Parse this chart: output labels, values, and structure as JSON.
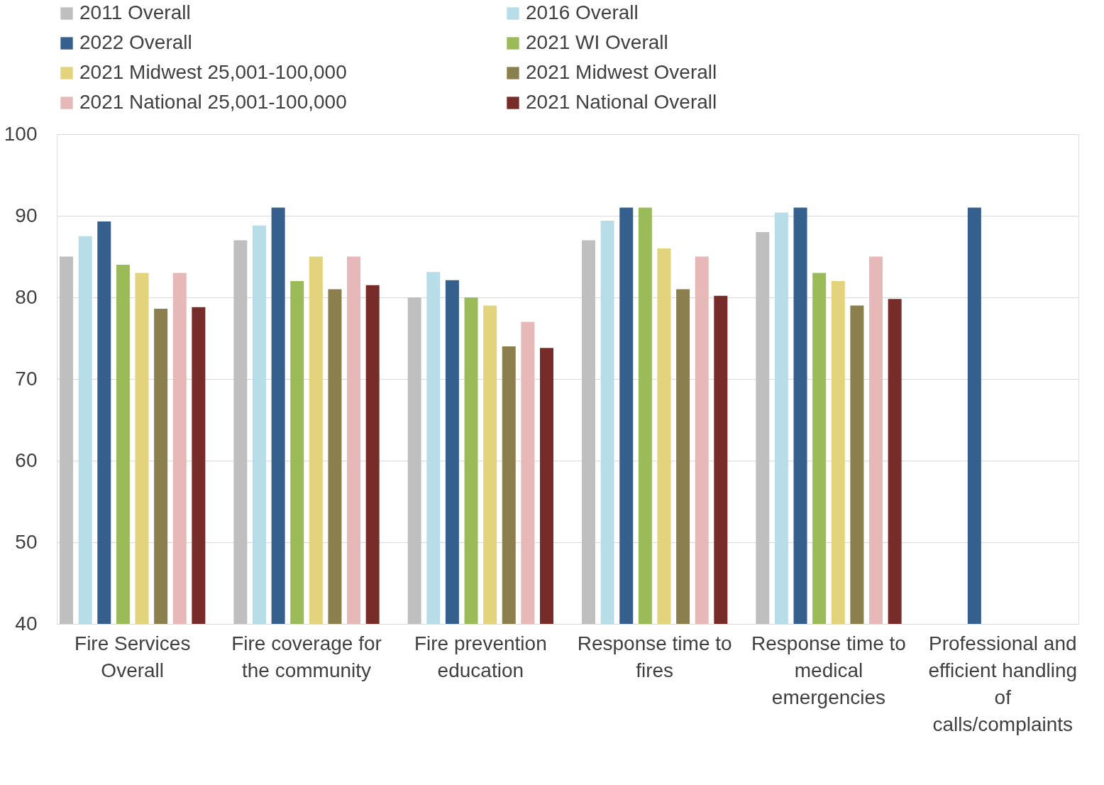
{
  "chart_data": {
    "type": "bar",
    "categories": [
      "Fire Services Overall",
      "Fire coverage for the community",
      "Fire prevention education",
      "Response time to fires",
      "Response time to medical emergencies",
      "Professional and efficient handling of calls/complaints"
    ],
    "series": [
      {
        "name": "2011 Overall",
        "color": "#bfbfbf",
        "values": [
          85,
          87,
          80,
          87,
          88,
          null
        ]
      },
      {
        "name": "2016 Overall",
        "color": "#b7dde8",
        "values": [
          87.5,
          88.8,
          83.1,
          89.4,
          90.4,
          null
        ]
      },
      {
        "name": "2022 Overall",
        "color": "#355f8d",
        "values": [
          89.3,
          91,
          82.1,
          91,
          91,
          91
        ]
      },
      {
        "name": "2021 WI Overall",
        "color": "#9bbb59",
        "values": [
          84,
          82,
          80,
          91,
          83,
          null
        ]
      },
      {
        "name": "2021 Midwest 25,001-100,000",
        "color": "#e3d37c",
        "values": [
          83,
          85,
          79,
          86,
          82,
          null
        ]
      },
      {
        "name": "2021 Midwest Overall",
        "color": "#8a7f4d",
        "values": [
          78.6,
          81,
          74,
          81,
          79,
          null
        ]
      },
      {
        "name": "2021 National 25,001-100,000",
        "color": "#e6b9b8",
        "values": [
          83,
          85,
          77,
          85,
          85,
          null
        ]
      },
      {
        "name": "2021 National Overall",
        "color": "#772c2a",
        "values": [
          78.8,
          81.5,
          73.8,
          80.2,
          79.8,
          null
        ]
      }
    ],
    "ylim": [
      40,
      100
    ],
    "yticks": [
      40,
      50,
      60,
      70,
      80,
      90,
      100
    ],
    "grid": "y",
    "legend": "top"
  }
}
